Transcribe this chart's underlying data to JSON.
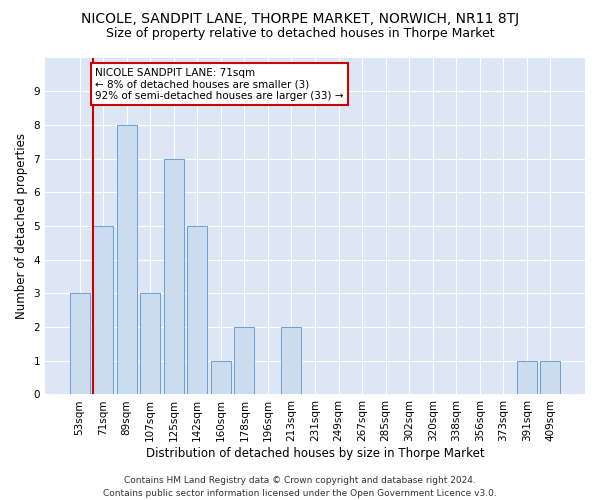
{
  "title": "NICOLE, SANDPIT LANE, THORPE MARKET, NORWICH, NR11 8TJ",
  "subtitle": "Size of property relative to detached houses in Thorpe Market",
  "xlabel": "Distribution of detached houses by size in Thorpe Market",
  "ylabel": "Number of detached properties",
  "categories": [
    "53sqm",
    "71sqm",
    "89sqm",
    "107sqm",
    "125sqm",
    "142sqm",
    "160sqm",
    "178sqm",
    "196sqm",
    "213sqm",
    "231sqm",
    "249sqm",
    "267sqm",
    "285sqm",
    "302sqm",
    "320sqm",
    "338sqm",
    "356sqm",
    "373sqm",
    "391sqm",
    "409sqm"
  ],
  "values": [
    3,
    5,
    8,
    3,
    7,
    5,
    1,
    2,
    0,
    2,
    0,
    0,
    0,
    0,
    0,
    0,
    0,
    0,
    0,
    1,
    1
  ],
  "bar_color": "#ccdcef",
  "bar_edge_color": "#6a9fd0",
  "highlight_color": "#cc0000",
  "annotation_text": "NICOLE SANDPIT LANE: 71sqm\n← 8% of detached houses are smaller (3)\n92% of semi-detached houses are larger (33) →",
  "annotation_box_color": "white",
  "annotation_box_edge": "#cc0000",
  "vline_x_index": 1,
  "ylim": [
    0,
    10
  ],
  "yticks": [
    0,
    1,
    2,
    3,
    4,
    5,
    6,
    7,
    8,
    9,
    10
  ],
  "background_color": "#dce6f5",
  "grid_color": "white",
  "footer": "Contains HM Land Registry data © Crown copyright and database right 2024.\nContains public sector information licensed under the Open Government Licence v3.0.",
  "title_fontsize": 10,
  "subtitle_fontsize": 9,
  "xlabel_fontsize": 8.5,
  "ylabel_fontsize": 8.5,
  "tick_fontsize": 7.5,
  "footer_fontsize": 6.5
}
